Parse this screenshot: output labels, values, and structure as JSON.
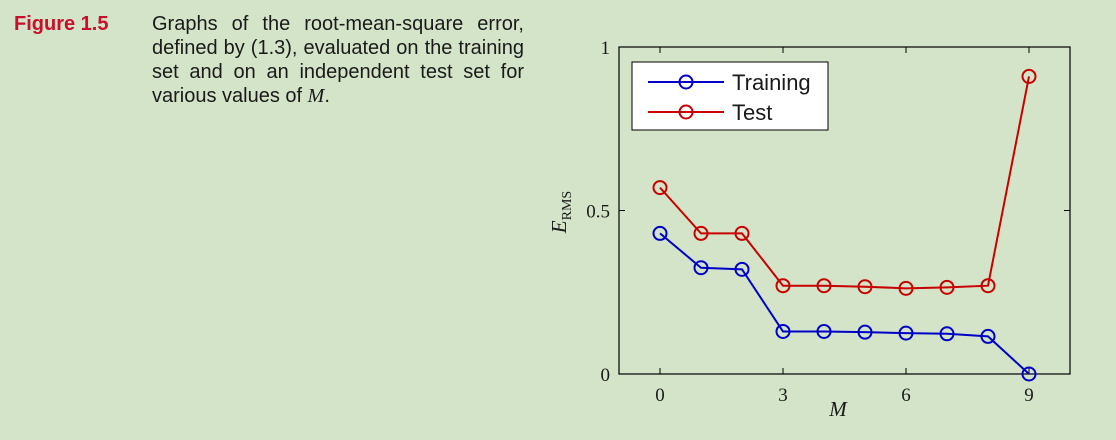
{
  "caption": {
    "label": "Figure 1.5",
    "text_1": "Graphs of the root-mean-square error, defined by (1.3), evaluated on the training set and on an independent test set for various values of",
    "math_symbol": "M",
    "text_2": "."
  },
  "chart_data": {
    "type": "line",
    "xlabel": "M",
    "ylabel_main": "E",
    "ylabel_sub": "RMS",
    "x": [
      0,
      1,
      2,
      3,
      4,
      5,
      6,
      7,
      8,
      9
    ],
    "xlim": [
      -1,
      10
    ],
    "ylim": [
      0,
      1
    ],
    "xticks": [
      0,
      3,
      6,
      9
    ],
    "yticks": [
      0,
      0.5,
      1
    ],
    "ytick_labels": [
      "0",
      "0.5",
      "1"
    ],
    "legend_position": "top-left",
    "series": [
      {
        "name": "Training",
        "color": "#0000c8",
        "values": [
          0.43,
          0.325,
          0.32,
          0.13,
          0.13,
          0.128,
          0.125,
          0.123,
          0.115,
          0.0
        ]
      },
      {
        "name": "Test",
        "color": "#c80000",
        "values": [
          0.57,
          0.43,
          0.43,
          0.27,
          0.27,
          0.267,
          0.262,
          0.265,
          0.27,
          0.91
        ]
      }
    ]
  }
}
